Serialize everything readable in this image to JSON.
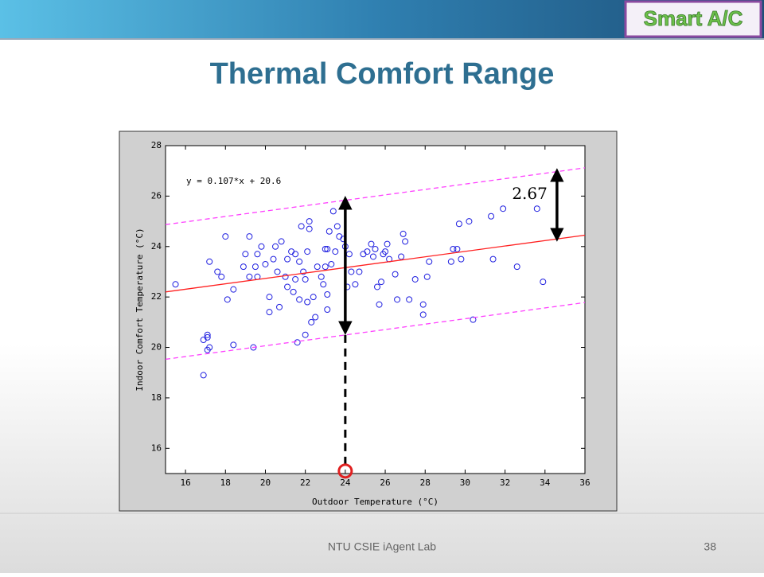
{
  "slide": {
    "badge": "Smart A/C",
    "title": "Thermal Comfort Range",
    "footer": "NTU CSIE iAgent Lab",
    "page": "38"
  },
  "chart_data": {
    "type": "scatter",
    "xlabel": "Outdoor Temperature (°C)",
    "ylabel": "Indoor Comfort Temperature (°C)",
    "equation": "y = 0.107*x + 20.6",
    "xlim": [
      15,
      36
    ],
    "ylim": [
      15,
      28
    ],
    "xticks": [
      16,
      18,
      20,
      22,
      24,
      26,
      28,
      30,
      32,
      34,
      36
    ],
    "yticks": [
      16,
      18,
      20,
      22,
      24,
      26,
      28
    ],
    "series": [
      {
        "style": "marker",
        "color": "#2020e0",
        "x": [
          15.5,
          16.9,
          17.1,
          17.1,
          17.1,
          17.2,
          16.9,
          17.2,
          17.6,
          17.8,
          18.0,
          18.1,
          18.4,
          18.4,
          18.9,
          19.0,
          19.2,
          19.2,
          19.4,
          19.5,
          19.6,
          19.6,
          19.8,
          20.0,
          20.2,
          20.2,
          20.4,
          20.5,
          20.6,
          20.7,
          20.8,
          21.0,
          21.1,
          21.1,
          21.3,
          21.4,
          21.5,
          21.5,
          21.6,
          21.7,
          21.7,
          21.8,
          21.9,
          22.0,
          22.0,
          22.1,
          22.1,
          22.2,
          22.2,
          22.3,
          22.4,
          22.5,
          22.6,
          22.8,
          22.9,
          23.0,
          23.0,
          23.1,
          23.1,
          23.1,
          23.2,
          23.3,
          23.4,
          23.5,
          23.6,
          23.7,
          23.9,
          24.0,
          24.1,
          24.2,
          24.3,
          24.5,
          24.7,
          24.9,
          25.1,
          25.3,
          25.4,
          25.5,
          25.6,
          25.7,
          25.8,
          25.9,
          26.0,
          26.1,
          26.2,
          26.5,
          26.6,
          26.8,
          26.9,
          27.0,
          27.2,
          27.5,
          27.9,
          27.9,
          28.1,
          28.2,
          29.3,
          29.4,
          29.6,
          29.7,
          29.8,
          30.2,
          30.4,
          31.3,
          31.4,
          31.9,
          32.6,
          33.6,
          33.9
        ],
        "values": [
          22.5,
          20.3,
          20.5,
          20.4,
          19.9,
          20.0,
          18.9,
          23.4,
          23.0,
          22.8,
          24.4,
          21.9,
          22.3,
          20.1,
          23.2,
          23.7,
          24.4,
          22.8,
          20.0,
          23.2,
          23.7,
          22.8,
          24.0,
          23.3,
          21.4,
          22.0,
          23.5,
          24.0,
          23.0,
          21.6,
          24.2,
          22.8,
          22.4,
          23.5,
          23.8,
          22.2,
          23.7,
          22.7,
          20.2,
          21.9,
          23.4,
          24.8,
          23.0,
          22.7,
          20.5,
          21.8,
          23.8,
          24.7,
          25.0,
          21.0,
          22.0,
          21.2,
          23.2,
          22.8,
          22.5,
          23.9,
          23.2,
          22.1,
          21.5,
          23.9,
          24.6,
          23.3,
          25.4,
          23.8,
          24.8,
          24.4,
          24.3,
          24.0,
          22.4,
          23.7,
          23.0,
          22.5,
          23.0,
          23.7,
          23.8,
          24.1,
          23.6,
          23.9,
          22.4,
          21.7,
          22.6,
          23.7,
          23.8,
          24.1,
          23.5,
          22.9,
          21.9,
          23.6,
          24.5,
          24.2,
          21.9,
          22.7,
          21.7,
          21.3,
          22.8,
          23.4,
          23.4,
          23.9,
          23.9,
          24.9,
          23.5,
          25.0,
          21.1,
          25.2,
          23.5,
          25.5,
          23.2,
          25.5,
          22.6
        ]
      },
      {
        "style": "line",
        "color": "#ff2020",
        "x": [
          15,
          36
        ],
        "values": [
          22.2,
          24.45
        ]
      },
      {
        "style": "dashed",
        "color": "#ff40ff",
        "x": [
          15,
          36
        ],
        "values": [
          24.87,
          27.12
        ]
      },
      {
        "style": "dashed",
        "color": "#ff40ff",
        "x": [
          15,
          36
        ],
        "values": [
          19.53,
          21.78
        ]
      }
    ],
    "annotations": [
      {
        "kind": "arrow",
        "x": 24,
        "y": [
          20.6,
          25.9
        ]
      },
      {
        "kind": "guide",
        "x": 24,
        "y": [
          15.1,
          20.6
        ]
      },
      {
        "kind": "circle",
        "x": 24,
        "y": [
          15.1
        ]
      },
      {
        "kind": "arrow",
        "text": "2.67",
        "x": 34.6,
        "y": [
          24.3,
          27.0
        ]
      }
    ]
  }
}
